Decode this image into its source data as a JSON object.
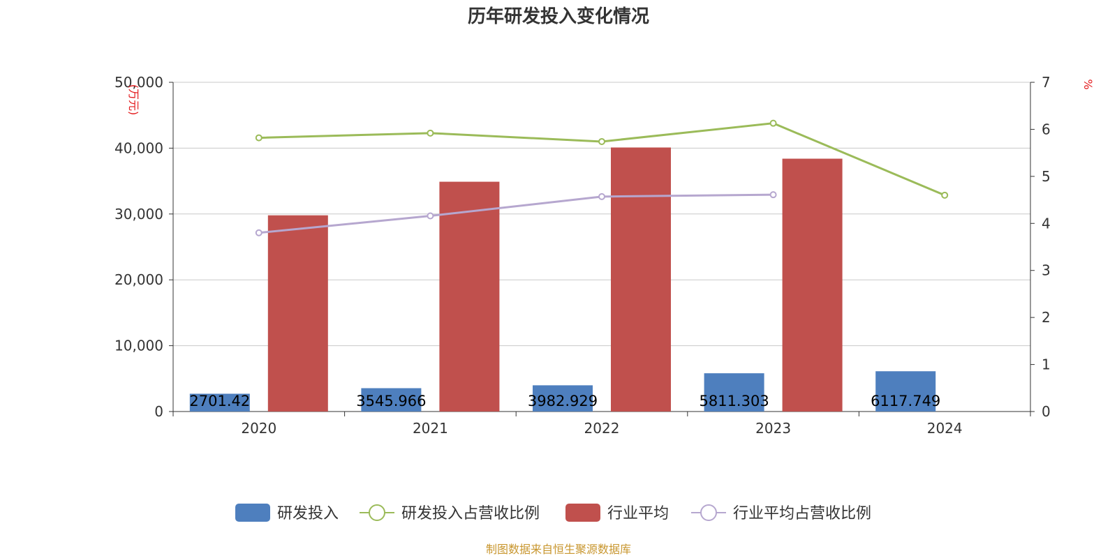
{
  "colors": {
    "rd": "#4e7fbe",
    "industry": "#c0504d",
    "rd_ratio": "#9bbb59",
    "industry_ratio": "#b6a7cf",
    "unit": "#e31a1c",
    "source": "#c8962e",
    "grid": "#c8c8c8",
    "axis": "#333333"
  },
  "chart_data": {
    "type": "bar",
    "title": "历年研发投入变化情况",
    "categories": [
      "2020",
      "2021",
      "2022",
      "2023",
      "2024"
    ],
    "y_left": {
      "unit": "(万元)",
      "range": [
        0,
        50000
      ],
      "ticks": [
        "0",
        "10,000",
        "20,000",
        "30,000",
        "40,000",
        "50,000"
      ],
      "tick_values": [
        0,
        10000,
        20000,
        30000,
        40000,
        50000
      ]
    },
    "y_right": {
      "unit": "%",
      "range": [
        0,
        7
      ],
      "ticks": [
        "0",
        "1",
        "2",
        "3",
        "4",
        "5",
        "6",
        "7"
      ],
      "tick_values": [
        0,
        1,
        2,
        3,
        4,
        5,
        6,
        7
      ]
    },
    "grid": true,
    "legend_position": "bottom",
    "series": [
      {
        "name": "研发投入",
        "type": "bar",
        "axis": "left",
        "color_key": "rd",
        "values": [
          2701.42,
          3545.966,
          3982.929,
          5811.303,
          6117.749
        ],
        "labels": [
          "2701.42",
          "3545.966",
          "3982.929",
          "5811.303",
          "6117.749"
        ]
      },
      {
        "name": "研发投入占营收比例",
        "type": "line",
        "axis": "right",
        "color_key": "rd_ratio",
        "values": [
          5.82,
          5.92,
          5.74,
          6.13,
          4.6
        ]
      },
      {
        "name": "行业平均",
        "type": "bar",
        "axis": "left",
        "color_key": "industry",
        "values": [
          29800,
          34900,
          40100,
          38400,
          null
        ]
      },
      {
        "name": "行业平均占营收比例",
        "type": "line",
        "axis": "right",
        "color_key": "industry_ratio",
        "values": [
          3.8,
          4.16,
          4.57,
          4.61,
          null
        ]
      }
    ]
  },
  "source_text": "制图数据来自恒生聚源数据库"
}
